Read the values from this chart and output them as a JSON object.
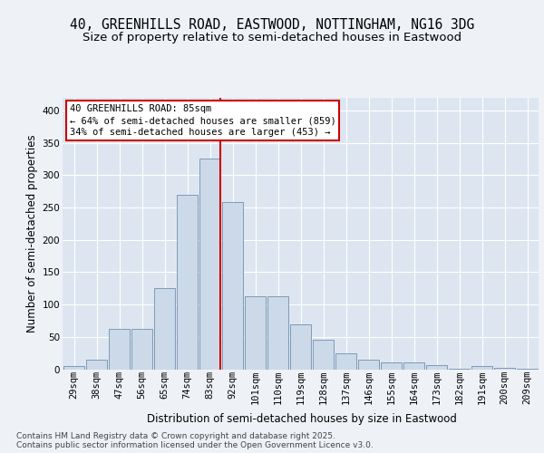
{
  "title_line1": "40, GREENHILLS ROAD, EASTWOOD, NOTTINGHAM, NG16 3DG",
  "title_line2": "Size of property relative to semi-detached houses in Eastwood",
  "xlabel": "Distribution of semi-detached houses by size in Eastwood",
  "ylabel": "Number of semi-detached properties",
  "bins": [
    "29sqm",
    "38sqm",
    "47sqm",
    "56sqm",
    "65sqm",
    "74sqm",
    "83sqm",
    "92sqm",
    "101sqm",
    "110sqm",
    "119sqm",
    "128sqm",
    "137sqm",
    "146sqm",
    "155sqm",
    "164sqm",
    "173sqm",
    "182sqm",
    "191sqm",
    "200sqm",
    "209sqm"
  ],
  "values": [
    5,
    15,
    62,
    62,
    125,
    270,
    325,
    258,
    113,
    113,
    70,
    45,
    25,
    15,
    10,
    10,
    6,
    1,
    5,
    2,
    1
  ],
  "bar_color": "#ccd9e8",
  "bar_edge_color": "#7090b0",
  "vline_color": "#cc0000",
  "annotation_text": "40 GREENHILLS ROAD: 85sqm\n← 64% of semi-detached houses are smaller (859)\n34% of semi-detached houses are larger (453) →",
  "annotation_box_color": "#ffffff",
  "annotation_box_edge": "#cc0000",
  "bg_color": "#eef2f7",
  "plot_bg_color": "#dde6f0",
  "grid_color": "#ffffff",
  "footer_line1": "Contains HM Land Registry data © Crown copyright and database right 2025.",
  "footer_line2": "Contains public sector information licensed under the Open Government Licence v3.0.",
  "ylim": [
    0,
    420
  ],
  "title_fontsize": 10.5,
  "subtitle_fontsize": 9.5,
  "axis_label_fontsize": 8.5,
  "tick_fontsize": 7.5,
  "annotation_fontsize": 7.5,
  "footer_fontsize": 6.5
}
